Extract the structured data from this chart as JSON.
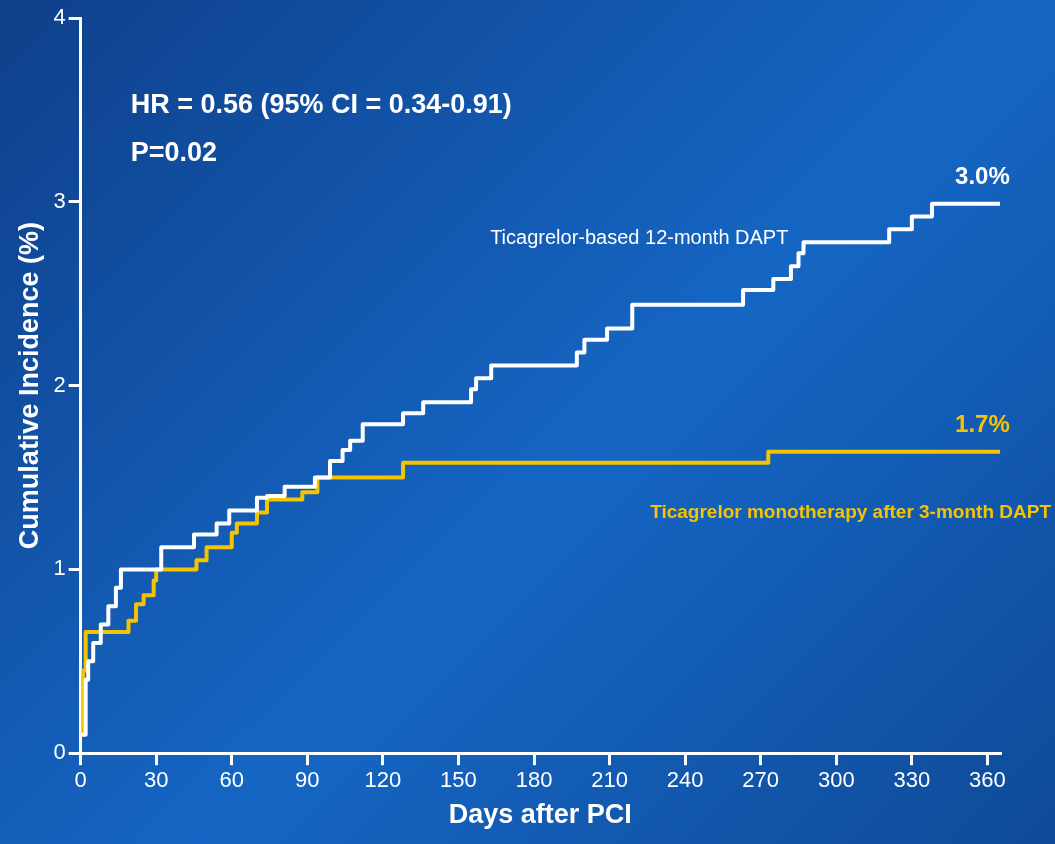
{
  "chart_data": {
    "type": "step",
    "xlabel": "Days after PCI",
    "ylabel": "Cumulative Incidence (%)",
    "xlim": [
      0,
      365
    ],
    "xticks": [
      0,
      30,
      60,
      90,
      120,
      150,
      180,
      210,
      240,
      270,
      300,
      330,
      360
    ],
    "ylim": [
      0,
      4
    ],
    "yticks": [
      0,
      1,
      2,
      3,
      4
    ],
    "grid": false,
    "legend": false,
    "marker": "none",
    "line_style": "solid",
    "series": [
      {
        "name": "Ticagrelor-based 12-month DAPT",
        "color": "#ffffff",
        "x": [
          0,
          2,
          3,
          5,
          8,
          11,
          14,
          16,
          32,
          45,
          54,
          59,
          70,
          74,
          81,
          93,
          99,
          104,
          107,
          112,
          128,
          136,
          155,
          157,
          163,
          197,
          200,
          209,
          219,
          263,
          275,
          282,
          285,
          287,
          321,
          330,
          338,
          365
        ],
        "values": [
          0.1,
          0.4,
          0.5,
          0.6,
          0.7,
          0.8,
          0.9,
          1.0,
          1.12,
          1.19,
          1.25,
          1.32,
          1.39,
          1.4,
          1.45,
          1.5,
          1.59,
          1.65,
          1.7,
          1.79,
          1.85,
          1.91,
          1.98,
          2.04,
          2.11,
          2.18,
          2.25,
          2.31,
          2.44,
          2.52,
          2.58,
          2.65,
          2.72,
          2.78,
          2.85,
          2.92,
          2.99,
          2.99
        ]
      },
      {
        "name": "Ticagrelor monotherapy after 3-month DAPT",
        "color": "#f5c400",
        "x": [
          0,
          1,
          2,
          19,
          22,
          25,
          29,
          30,
          46,
          50,
          60,
          62,
          70,
          74,
          88,
          94,
          128,
          273,
          365
        ],
        "values": [
          0.1,
          0.45,
          0.66,
          0.72,
          0.81,
          0.86,
          0.94,
          1.0,
          1.05,
          1.12,
          1.2,
          1.25,
          1.31,
          1.38,
          1.42,
          1.5,
          1.58,
          1.64,
          1.64
        ]
      }
    ],
    "annotations": [
      "HR = 0.56 (95% CI = 0.34-0.91)",
      "P=0.02",
      {
        "text": "3.0%",
        "x": 360,
        "y": 2.99
      },
      {
        "text": "1.7%",
        "x": 360,
        "y": 1.64
      }
    ]
  }
}
